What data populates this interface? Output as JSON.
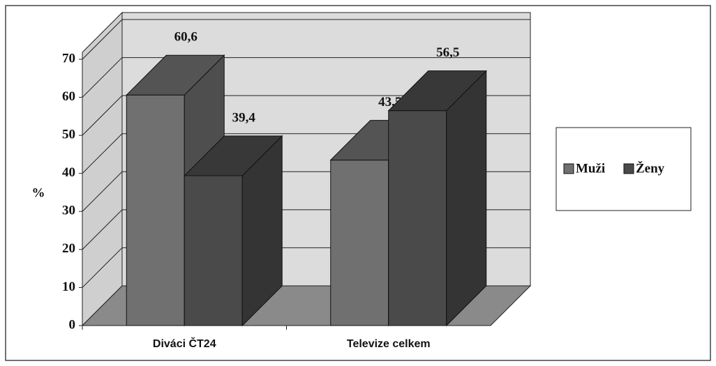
{
  "chart_data": {
    "type": "bar3d",
    "categories": [
      "Diváci ČT24",
      "Televize celkem"
    ],
    "series": [
      {
        "name": "Muži",
        "color": "#707070",
        "values": [
          60.6,
          43.5
        ],
        "value_labels": [
          "60,6",
          "43,5"
        ]
      },
      {
        "name": "Ženy",
        "color": "#4a4a4a",
        "values": [
          39.4,
          56.5
        ],
        "value_labels": [
          "39,4",
          "56,5"
        ]
      }
    ],
    "y_label": "%",
    "ylim": [
      0,
      70
    ],
    "yticks": [
      0,
      10,
      20,
      30,
      40,
      50,
      60,
      70
    ],
    "grid": true,
    "legend": "right"
  }
}
